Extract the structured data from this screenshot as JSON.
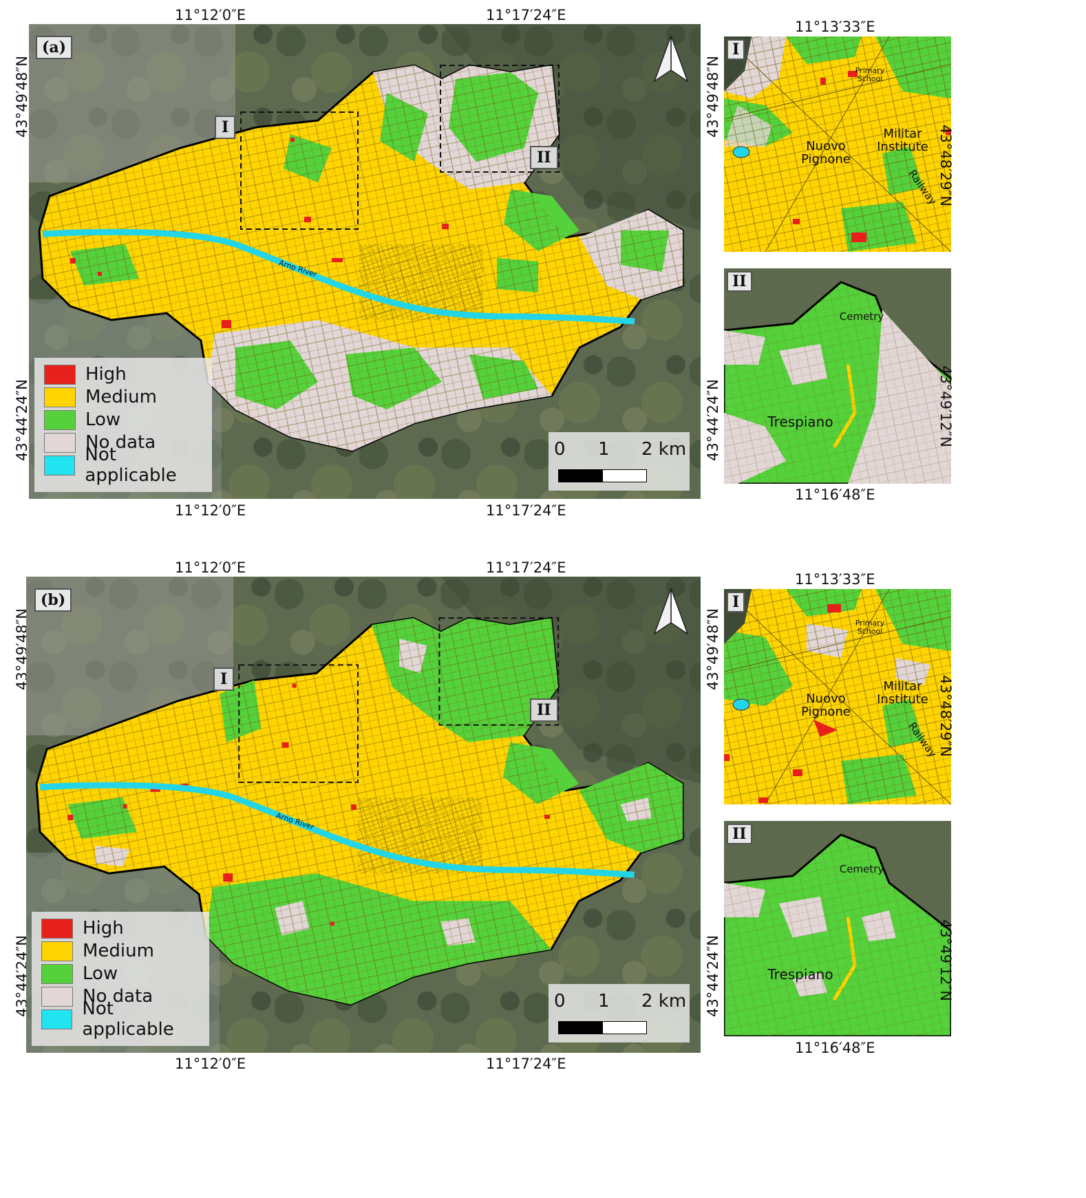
{
  "panels": [
    {
      "id": "a",
      "label": "(a)",
      "top_coords": [
        "11°12′0″E",
        "11°17′24″E"
      ],
      "bottom_coords": [
        "11°12′0″E",
        "11°17′24″E"
      ],
      "left_coords": [
        "43°49′48″N",
        "43°44′24″N"
      ],
      "right_coords": [
        "43°49′48″N",
        "43°44′24″N"
      ],
      "box_labels": [
        "I",
        "II"
      ],
      "river_label": "Arno River",
      "scale": {
        "labels": [
          "0",
          "1",
          "2 km"
        ]
      },
      "inset_I": {
        "label": "I",
        "top_coord": "11°13′33″E",
        "right_coord": "43°48′29″N",
        "places": [
          "Primary School",
          "Militar Institute",
          "Nuovo Pignone",
          "Railway"
        ]
      },
      "inset_II": {
        "label": "II",
        "bottom_coord": "11°16′48″E",
        "right_coord": "43°49′12″N",
        "places": [
          "Cemetry",
          "Trespiano"
        ]
      }
    },
    {
      "id": "b",
      "label": "(b)",
      "top_coords": [
        "11°12′0″E",
        "11°17′24″E"
      ],
      "bottom_coords": [
        "11°12′0″E",
        "11°17′24″E"
      ],
      "left_coords": [
        "43°49′48″N",
        "43°44′24″N"
      ],
      "right_coords": [
        "43°49′48″N",
        "43°44′24″N"
      ],
      "box_labels": [
        "I",
        "II"
      ],
      "river_label": "Arno River",
      "scale": {
        "labels": [
          "0",
          "1",
          "2 km"
        ]
      },
      "inset_I": {
        "label": "I",
        "top_coord": "11°13′33″E",
        "right_coord": "43°48′29″N",
        "places": [
          "Primary School",
          "Militar Institute",
          "Nuovo Pignone",
          "Railway"
        ]
      },
      "inset_II": {
        "label": "II",
        "bottom_coord": "11°16′48″E",
        "right_coord": "43°49′12″N",
        "places": [
          "Cemetry",
          "Trespiano"
        ]
      }
    }
  ],
  "legend": [
    {
      "label": "High",
      "color": "#e8201c"
    },
    {
      "label": "Medium",
      "color": "#ffd400"
    },
    {
      "label": "Low",
      "color": "#55d13b"
    },
    {
      "label": "No data",
      "color": "#e2d6d6"
    },
    {
      "label": "Not applicable",
      "color": "#22e3f0"
    }
  ],
  "colors": {
    "satellite": "#5f6b52",
    "satellite_dark": "#3f4a36",
    "urban_gray": "#9a9a95",
    "boundary": "#000000",
    "river": "#22d6e8"
  },
  "icons": [
    "north-arrow-icon"
  ]
}
